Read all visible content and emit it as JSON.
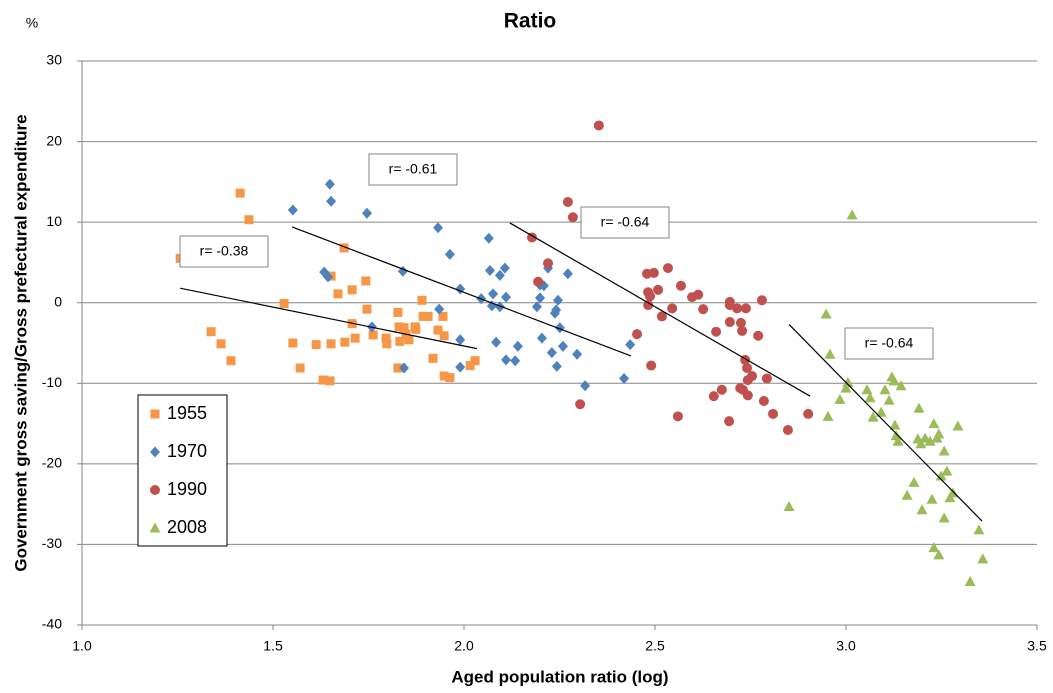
{
  "chart_data": {
    "type": "scatter",
    "title": "Ratio",
    "y_unit": "%",
    "x_label": "Aged population ratio (log)",
    "y_label": "Government gross saving/Gross prefectural expenditure",
    "xlim": [
      1.0,
      3.5
    ],
    "xticks": [
      {
        "value": 1.0,
        "label": "1.0"
      },
      1.5,
      {
        "value": 2.0,
        "label": "2.0"
      },
      2.5,
      {
        "value": 3.0,
        "label": "3.0"
      },
      3.5
    ],
    "ylim": [
      -40,
      30
    ],
    "yticks": [
      -40,
      -30,
      -20,
      -10,
      0,
      10,
      20,
      30
    ],
    "grid": true,
    "legend": "lower left",
    "annotations": [
      "r= -0.38",
      "r= -0.61",
      "r= -0.64",
      "r= -0.64"
    ],
    "series": [
      {
        "name": "1955",
        "color": "#f79646",
        "marker": "square",
        "x": [
          1.257,
          1.414,
          1.437,
          1.338,
          1.364,
          1.39,
          1.529,
          1.552,
          1.571,
          1.613,
          1.631,
          1.649,
          1.652,
          1.652,
          1.67,
          1.686,
          1.688,
          1.707,
          1.707,
          1.715,
          1.746,
          1.743,
          1.762,
          1.796,
          1.798,
          1.827,
          1.83,
          1.832,
          1.827,
          1.843,
          1.848,
          1.856,
          1.872,
          1.874,
          1.89,
          1.893,
          1.906,
          1.919,
          1.932,
          1.945,
          1.948,
          1.948,
          1.963,
          2.016,
          2.029
        ],
        "values": [
          5.5,
          13.6,
          10.3,
          -3.6,
          -5.1,
          -7.2,
          -0.1,
          -5.0,
          -8.1,
          -5.2,
          -9.6,
          -9.7,
          -5.1,
          3.3,
          1.1,
          6.8,
          -4.9,
          1.6,
          -2.6,
          -4.4,
          -0.8,
          2.7,
          -4.0,
          -4.4,
          -5.1,
          -1.2,
          -3.0,
          -4.8,
          -8.1,
          -3.1,
          -3.9,
          -4.6,
          -3.0,
          -3.3,
          0.3,
          -1.7,
          -1.7,
          -6.9,
          -3.4,
          -1.7,
          -4.1,
          -9.1,
          -9.3,
          -7.8,
          -7.2
        ],
        "trend_x": [
          1.257,
          2.034
        ],
        "trend_y": [
          1.8,
          -5.7
        ]
      },
      {
        "name": "1970",
        "color": "#4f81bd",
        "marker": "diamond",
        "x": [
          1.552,
          1.649,
          1.652,
          1.746,
          1.634,
          1.644,
          1.759,
          1.84,
          1.843,
          1.932,
          1.935,
          1.963,
          1.99,
          1.99,
          1.99,
          2.045,
          2.065,
          2.068,
          2.076,
          2.073,
          2.084,
          2.094,
          2.094,
          2.107,
          2.11,
          2.11,
          2.134,
          2.141,
          2.191,
          2.199,
          2.199,
          2.209,
          2.204,
          2.22,
          2.23,
          2.243,
          2.238,
          2.241,
          2.246,
          2.251,
          2.259,
          2.272,
          2.296,
          2.317,
          2.419,
          2.435
        ],
        "values": [
          11.5,
          14.7,
          12.6,
          11.1,
          3.8,
          3.2,
          -3.0,
          3.9,
          -8.1,
          9.3,
          -0.8,
          6.0,
          1.7,
          -4.6,
          -8.0,
          0.5,
          8.0,
          4.0,
          1.1,
          -0.4,
          -4.9,
          3.4,
          -0.5,
          4.3,
          0.7,
          -7.1,
          -7.2,
          -5.4,
          -0.5,
          2.2,
          0.6,
          2.1,
          -4.4,
          4.3,
          -6.2,
          -7.9,
          -1.3,
          -0.9,
          0.3,
          -3.1,
          -5.4,
          3.6,
          -6.4,
          -10.3,
          -9.4,
          -5.2
        ],
        "trend_x": [
          1.55,
          2.437
        ],
        "trend_y": [
          9.4,
          -6.6
        ]
      },
      {
        "name": "1990",
        "color": "#c0504d",
        "marker": "circle",
        "x": [
          2.353,
          2.272,
          2.285,
          2.178,
          2.22,
          2.194,
          2.453,
          2.304,
          2.479,
          2.497,
          2.482,
          2.487,
          2.482,
          2.49,
          2.508,
          2.518,
          2.534,
          2.545,
          2.56,
          2.568,
          2.597,
          2.613,
          2.626,
          2.66,
          2.654,
          2.675,
          2.696,
          2.696,
          2.694,
          2.696,
          2.715,
          2.725,
          2.723,
          2.728,
          2.73,
          2.736,
          2.738,
          2.741,
          2.743,
          2.743,
          2.754,
          2.77,
          2.78,
          2.785,
          2.793,
          2.809,
          2.848,
          2.901
        ],
        "values": [
          22.0,
          12.5,
          10.6,
          8.1,
          4.9,
          2.6,
          -3.9,
          -12.6,
          3.6,
          3.7,
          1.3,
          0.8,
          -0.3,
          -7.8,
          1.6,
          -1.7,
          4.3,
          -0.7,
          -14.1,
          2.1,
          0.7,
          1.0,
          -0.8,
          -3.6,
          -11.6,
          -10.8,
          0.1,
          -0.3,
          -14.7,
          -2.4,
          -0.7,
          -2.5,
          -10.6,
          -3.5,
          -10.8,
          -7.1,
          -0.7,
          -8.1,
          -9.6,
          -11.5,
          -9.1,
          -4.1,
          0.3,
          -12.2,
          -9.4,
          -13.8,
          -15.8,
          -13.8
        ],
        "trend_x": [
          2.12,
          2.906
        ],
        "trend_y": [
          9.9,
          -11.6
        ]
      },
      {
        "name": "2008",
        "color": "#9bbb59",
        "marker": "triangle",
        "x": [
          2.851,
          3.016,
          2.948,
          2.953,
          2.958,
          2.984,
          3.005,
          3.0,
          3.055,
          3.063,
          3.071,
          3.092,
          3.102,
          3.113,
          3.12,
          3.126,
          3.128,
          3.131,
          3.136,
          3.144,
          3.16,
          3.178,
          3.188,
          3.191,
          3.196,
          3.207,
          3.199,
          3.22,
          3.225,
          3.23,
          3.23,
          3.238,
          3.243,
          3.243,
          3.249,
          3.257,
          3.257,
          3.264,
          3.272,
          3.28,
          3.293,
          3.325,
          3.348,
          3.358
        ],
        "values": [
          -25.3,
          10.9,
          -1.4,
          -14.1,
          -6.4,
          -12.0,
          -9.9,
          -10.6,
          -10.8,
          -11.8,
          -14.2,
          -13.6,
          -10.8,
          -12.1,
          -9.2,
          -9.7,
          -15.2,
          -16.5,
          -17.2,
          -10.3,
          -23.9,
          -22.3,
          -16.9,
          -13.1,
          -17.5,
          -16.8,
          -25.7,
          -17.2,
          -24.4,
          -15.0,
          -30.4,
          -16.8,
          -31.3,
          -16.3,
          -21.5,
          -18.4,
          -26.7,
          -20.9,
          -24.2,
          -23.6,
          -15.3,
          -34.6,
          -28.2,
          -31.8
        ],
        "trend_x": [
          2.851,
          3.356
        ],
        "trend_y": [
          -2.7,
          -27.1
        ]
      }
    ]
  }
}
